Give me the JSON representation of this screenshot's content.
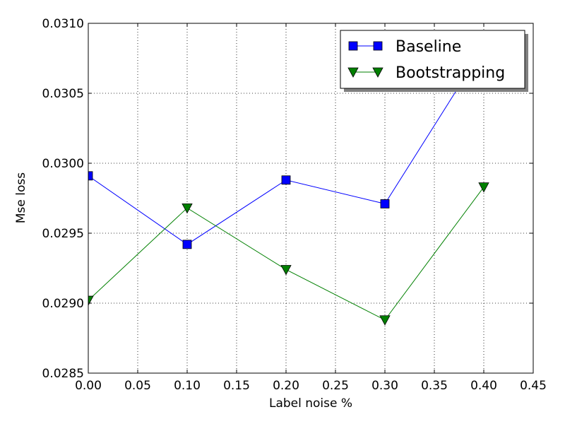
{
  "chart_data": {
    "type": "line",
    "title": "",
    "xlabel": "Label noise %",
    "ylabel": "Mse loss",
    "xlim": [
      0.0,
      0.45
    ],
    "ylim": [
      0.0285,
      0.031
    ],
    "x_ticks": [
      "0.00",
      "0.05",
      "0.10",
      "0.15",
      "0.20",
      "0.25",
      "0.30",
      "0.35",
      "0.40",
      "0.45"
    ],
    "y_ticks": [
      "0.0285",
      "0.0290",
      "0.0295",
      "0.0300",
      "0.0305",
      "0.0310"
    ],
    "grid": true,
    "legend_position": "top-right",
    "series": [
      {
        "name": "Baseline",
        "color": "#0000ff",
        "marker": "square",
        "x": [
          0.0,
          0.1,
          0.2,
          0.3,
          0.4
        ],
        "y": [
          0.02991,
          0.02942,
          0.02988,
          0.02971,
          0.03083
        ]
      },
      {
        "name": "Bootstrapping",
        "color": "#008000",
        "marker": "triangle-down",
        "x": [
          0.0,
          0.1,
          0.2,
          0.3,
          0.4
        ],
        "y": [
          0.02902,
          0.02968,
          0.02924,
          0.02888,
          0.02983
        ]
      }
    ]
  }
}
